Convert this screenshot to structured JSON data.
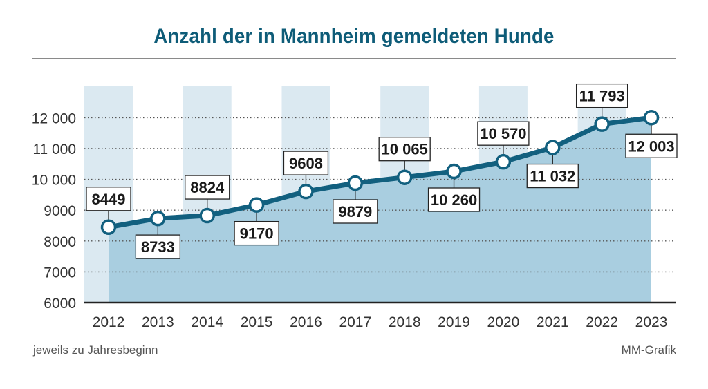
{
  "chart_data": {
    "type": "area",
    "title": "Anzahl der in Mannheim gemeldeten Hunde",
    "categories": [
      "2012",
      "2013",
      "2014",
      "2015",
      "2016",
      "2017",
      "2018",
      "2019",
      "2020",
      "2021",
      "2022",
      "2023"
    ],
    "values": [
      8449,
      8733,
      8824,
      9170,
      9608,
      9879,
      10065,
      10260,
      10570,
      11032,
      11793,
      12003
    ],
    "data_labels": [
      "8449",
      "8733",
      "8824",
      "9170",
      "9608",
      "9879",
      "10 065",
      "10 260",
      "10 570",
      "11 032",
      "11 793",
      "12 003"
    ],
    "label_position": [
      "above",
      "below",
      "above",
      "below",
      "above",
      "below",
      "above",
      "below",
      "above",
      "below",
      "above",
      "below"
    ],
    "y_ticks": [
      6000,
      7000,
      8000,
      9000,
      10000,
      11000,
      12000
    ],
    "y_tick_labels": [
      "6000",
      "7000",
      "8000",
      "9000",
      "10 000",
      "11 000",
      "12 000"
    ],
    "ylim": [
      6000,
      13000
    ],
    "grid": true,
    "xlabel": "",
    "ylabel": ""
  },
  "footnote": "jeweils zu Jahresbeginn",
  "credit": "MM-Grafik",
  "colors": {
    "title": "#0e5c78",
    "line": "#12607f",
    "area": "#a9cee0",
    "column_band": "#dbe9f1",
    "gridline": "#555555",
    "axis": "#222222"
  }
}
